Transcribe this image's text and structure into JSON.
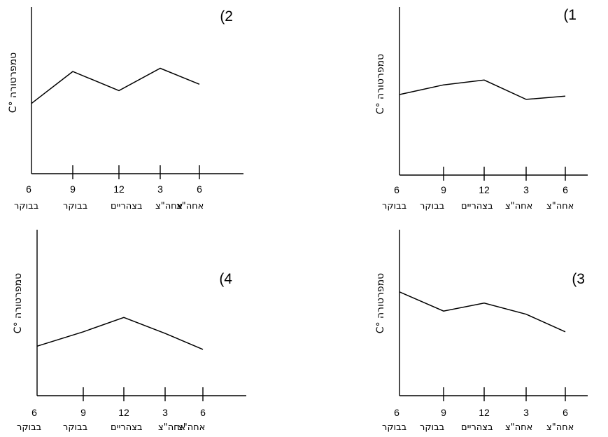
{
  "chart_data": [
    {
      "type": "line",
      "panel_label": "(2",
      "ylabel": "טמפרטורה °C",
      "categories": [
        "6",
        "9",
        "12",
        "3",
        "6"
      ],
      "category_captions": [
        "בבוקר",
        "בבוקר",
        "בצהריים",
        "אחה\"צ",
        "אחה\"צ"
      ],
      "values": [
        44,
        64,
        52,
        66,
        56
      ],
      "ylim": [
        0,
        100
      ],
      "grid": false
    },
    {
      "type": "line",
      "panel_label": "(1",
      "ylabel": "טמפרטורה °C",
      "categories": [
        "6",
        "9",
        "12",
        "3",
        "6"
      ],
      "category_captions": [
        "בבוקר",
        "בבוקר",
        "בצהריים",
        "אחה\"צ",
        "אחה\"צ"
      ],
      "values": [
        50,
        56,
        59,
        47,
        49
      ],
      "ylim": [
        0,
        100
      ],
      "grid": false
    },
    {
      "type": "line",
      "panel_label": "(4",
      "ylabel": "טמפרטורה °C",
      "categories": [
        "6",
        "9",
        "12",
        "3",
        "6"
      ],
      "category_captions": [
        "בבוקר",
        "בבוקר",
        "בצהריים",
        "אחה\"צ",
        "אחה\"צ"
      ],
      "values": [
        31,
        40,
        49,
        39,
        29
      ],
      "ylim": [
        0,
        100
      ],
      "grid": false
    },
    {
      "type": "line",
      "panel_label": "(3",
      "ylabel": "טמפרטורה °C",
      "categories": [
        "6",
        "9",
        "12",
        "3",
        "6"
      ],
      "category_captions": [
        "בבוקר",
        "בבוקר",
        "בצהריים",
        "אחה\"צ",
        "אחה\"צ"
      ],
      "values": [
        65,
        53,
        58,
        51,
        40
      ],
      "ylim": [
        0,
        100
      ],
      "grid": false
    }
  ]
}
